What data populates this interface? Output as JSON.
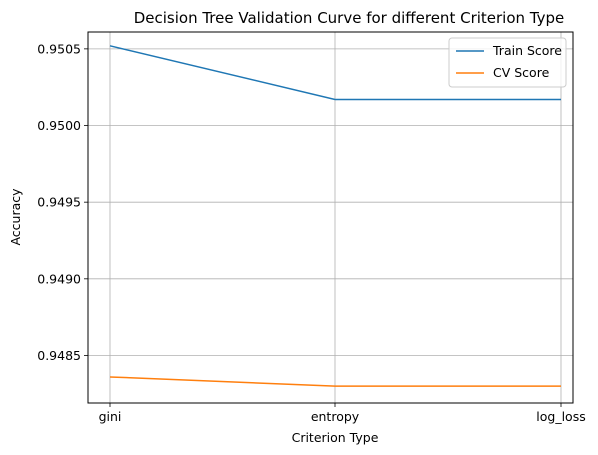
{
  "chart_data": {
    "type": "line",
    "title": "Decision Tree Validation Curve  for different Criterion Type",
    "xlabel": "Criterion Type",
    "ylabel": "Accuracy",
    "categories": [
      "gini",
      "entropy",
      "log_loss"
    ],
    "series": [
      {
        "name": "Train Score",
        "color": "#1f77b4",
        "values": [
          0.95052,
          0.95017,
          0.95017
        ]
      },
      {
        "name": "CV Score",
        "color": "#ff7f0e",
        "values": [
          0.94836,
          0.9483,
          0.9483
        ]
      }
    ],
    "ylim": [
      0.94819,
      0.95061
    ],
    "yticks": [
      "0.9485",
      "0.9490",
      "0.9495",
      "0.9500",
      "0.9505"
    ],
    "grid": true,
    "legend_position": "top-right"
  }
}
